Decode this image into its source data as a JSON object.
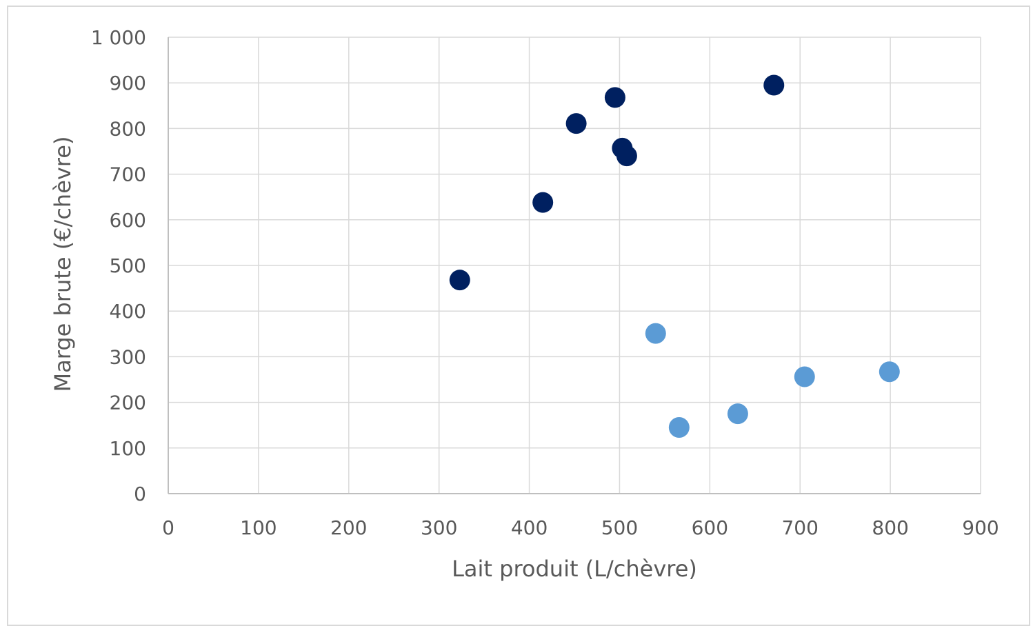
{
  "chart_data": {
    "type": "scatter",
    "title": "",
    "xlabel": "Lait produit (L/chèvre)",
    "ylabel": "Marge brute (€/chèvre)",
    "xlim": [
      0,
      900
    ],
    "ylim": [
      0,
      1000
    ],
    "x_ticks": [
      0,
      100,
      200,
      300,
      400,
      500,
      600,
      700,
      800,
      900
    ],
    "x_tick_labels": [
      "0",
      "100",
      "200",
      "300",
      "400",
      "500",
      "600",
      "700",
      "800",
      "900"
    ],
    "y_ticks": [
      0,
      100,
      200,
      300,
      400,
      500,
      600,
      700,
      800,
      900,
      1000
    ],
    "y_tick_labels": [
      "0",
      "100",
      "200",
      "300",
      "400",
      "500",
      "600",
      "700",
      "800",
      "900",
      "1 000"
    ],
    "grid": true,
    "legend": "none",
    "series": [
      {
        "color": "#002060",
        "points": [
          {
            "x": 323,
            "y": 468
          },
          {
            "x": 415,
            "y": 638
          },
          {
            "x": 452,
            "y": 811
          },
          {
            "x": 495,
            "y": 868
          },
          {
            "x": 503,
            "y": 757
          },
          {
            "x": 508,
            "y": 740
          },
          {
            "x": 671,
            "y": 895
          }
        ]
      },
      {
        "color": "#5b9bd5",
        "points": [
          {
            "x": 540,
            "y": 351
          },
          {
            "x": 566,
            "y": 145
          },
          {
            "x": 631,
            "y": 175
          },
          {
            "x": 705,
            "y": 256
          },
          {
            "x": 799,
            "y": 267
          }
        ]
      }
    ]
  }
}
